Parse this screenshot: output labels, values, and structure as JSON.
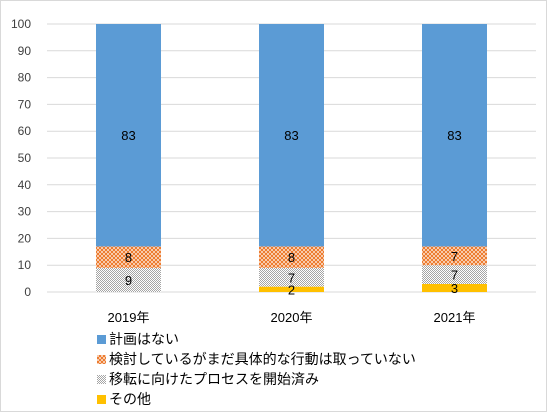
{
  "chart_data": {
    "type": "bar",
    "stacked": true,
    "categories": [
      "2019年",
      "2020年",
      "2021年"
    ],
    "series": [
      {
        "name": "その他",
        "values": [
          0,
          2,
          3
        ],
        "color": "#ffc000",
        "pattern": "solid"
      },
      {
        "name": "移転に向けたプロセスを開始済み",
        "values": [
          9,
          7,
          7
        ],
        "color": "#a5a5a5",
        "pattern": "dots"
      },
      {
        "name": "検討しているがまだ具体的な行動は取っていない",
        "values": [
          8,
          8,
          7
        ],
        "color": "#ed7d31",
        "pattern": "crosshatch"
      },
      {
        "name": "計画はない",
        "values": [
          83,
          83,
          83
        ],
        "color": "#5b9bd5",
        "pattern": "solid"
      }
    ],
    "data_labels": [
      [
        "",
        "2",
        "3"
      ],
      [
        "9",
        "7",
        "7"
      ],
      [
        "8",
        "8",
        "7"
      ],
      [
        "83",
        "83",
        "83"
      ]
    ],
    "legend_order": [
      "計画はない",
      "検討しているがまだ具体的な行動は取っていない",
      "移転に向けたプロセスを開始済み",
      "その他"
    ],
    "legend_position": "bottom",
    "ylim": [
      0,
      100
    ],
    "y_ticks": [
      "0",
      "10",
      "20",
      "30",
      "40",
      "50",
      "60",
      "70",
      "80",
      "90",
      "100"
    ],
    "grid": true,
    "title": "",
    "xlabel": "",
    "ylabel": ""
  }
}
